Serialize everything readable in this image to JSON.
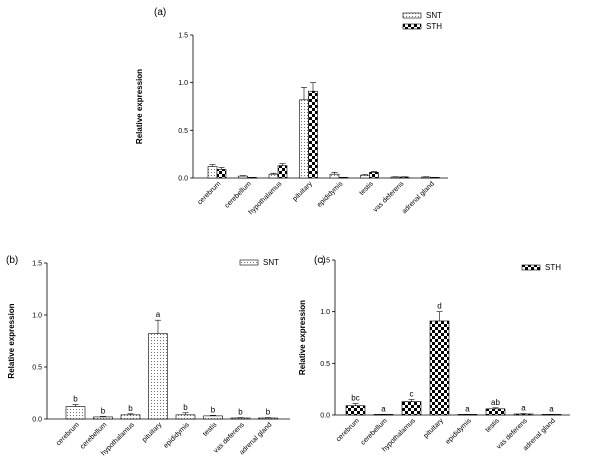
{
  "chart_data": [
    {
      "type": "bar",
      "panel_label": "(a)",
      "ylabel": "Relative expression",
      "ylim": [
        0,
        1.5
      ],
      "yticks": [
        "0.0",
        "0.5",
        "1.0",
        "1.5"
      ],
      "categories": [
        "cerebrum",
        "cerebellum",
        "hypothalamus",
        "pituitary",
        "epididymis",
        "testis",
        "vas deferens",
        "adrenal gland"
      ],
      "series": [
        {
          "name": "SNT",
          "pattern": "dots",
          "values": [
            0.12,
            0.02,
            0.04,
            0.82,
            0.04,
            0.03,
            0.01,
            0.01
          ],
          "errors": [
            0.02,
            0.005,
            0.01,
            0.13,
            0.02,
            0.005,
            0.003,
            0.003
          ]
        },
        {
          "name": "STH",
          "pattern": "checker",
          "values": [
            0.09,
            0.005,
            0.13,
            0.91,
            0.005,
            0.06,
            0.01,
            0.005
          ],
          "errors": [
            0.02,
            0.002,
            0.02,
            0.09,
            0.002,
            0.01,
            0.003,
            0.002
          ]
        }
      ],
      "legend": "top-right"
    },
    {
      "type": "bar",
      "panel_label": "(b)",
      "ylabel": "Relative expression",
      "ylim": [
        0,
        1.5
      ],
      "yticks": [
        "0.0",
        "0.5",
        "1.0",
        "1.5"
      ],
      "categories": [
        "cerebrum",
        "cerebellum",
        "hypothalamus",
        "pituitary",
        "epididymis",
        "testis",
        "vas deferens",
        "adrenal gland"
      ],
      "series": [
        {
          "name": "SNT",
          "pattern": "dots",
          "values": [
            0.12,
            0.02,
            0.04,
            0.82,
            0.04,
            0.03,
            0.01,
            0.01
          ],
          "errors": [
            0.02,
            0.005,
            0.01,
            0.13,
            0.02,
            0.005,
            0.003,
            0.003
          ],
          "letters": [
            "b",
            "b",
            "b",
            "a",
            "b",
            "b",
            "b",
            "b"
          ]
        }
      ],
      "legend": "top-right"
    },
    {
      "type": "bar",
      "panel_label": "(c)",
      "ylabel": "Relative expression",
      "ylim": [
        0,
        1.5
      ],
      "yticks": [
        "0.0",
        "0.5",
        "1.0",
        "1.5"
      ],
      "categories": [
        "cerebrum",
        "cerebellum",
        "hypothalamus",
        "pituitary",
        "epididymis",
        "testis",
        "vas deferens",
        "adrenal gland"
      ],
      "series": [
        {
          "name": "STH",
          "pattern": "checker",
          "values": [
            0.09,
            0.005,
            0.13,
            0.91,
            0.005,
            0.06,
            0.01,
            0.005
          ],
          "errors": [
            0.02,
            0.002,
            0.02,
            0.09,
            0.002,
            0.01,
            0.003,
            0.002
          ],
          "letters": [
            "bc",
            "a",
            "c",
            "d",
            "a",
            "ab",
            "a",
            "a"
          ]
        }
      ],
      "legend": "top-right"
    }
  ]
}
